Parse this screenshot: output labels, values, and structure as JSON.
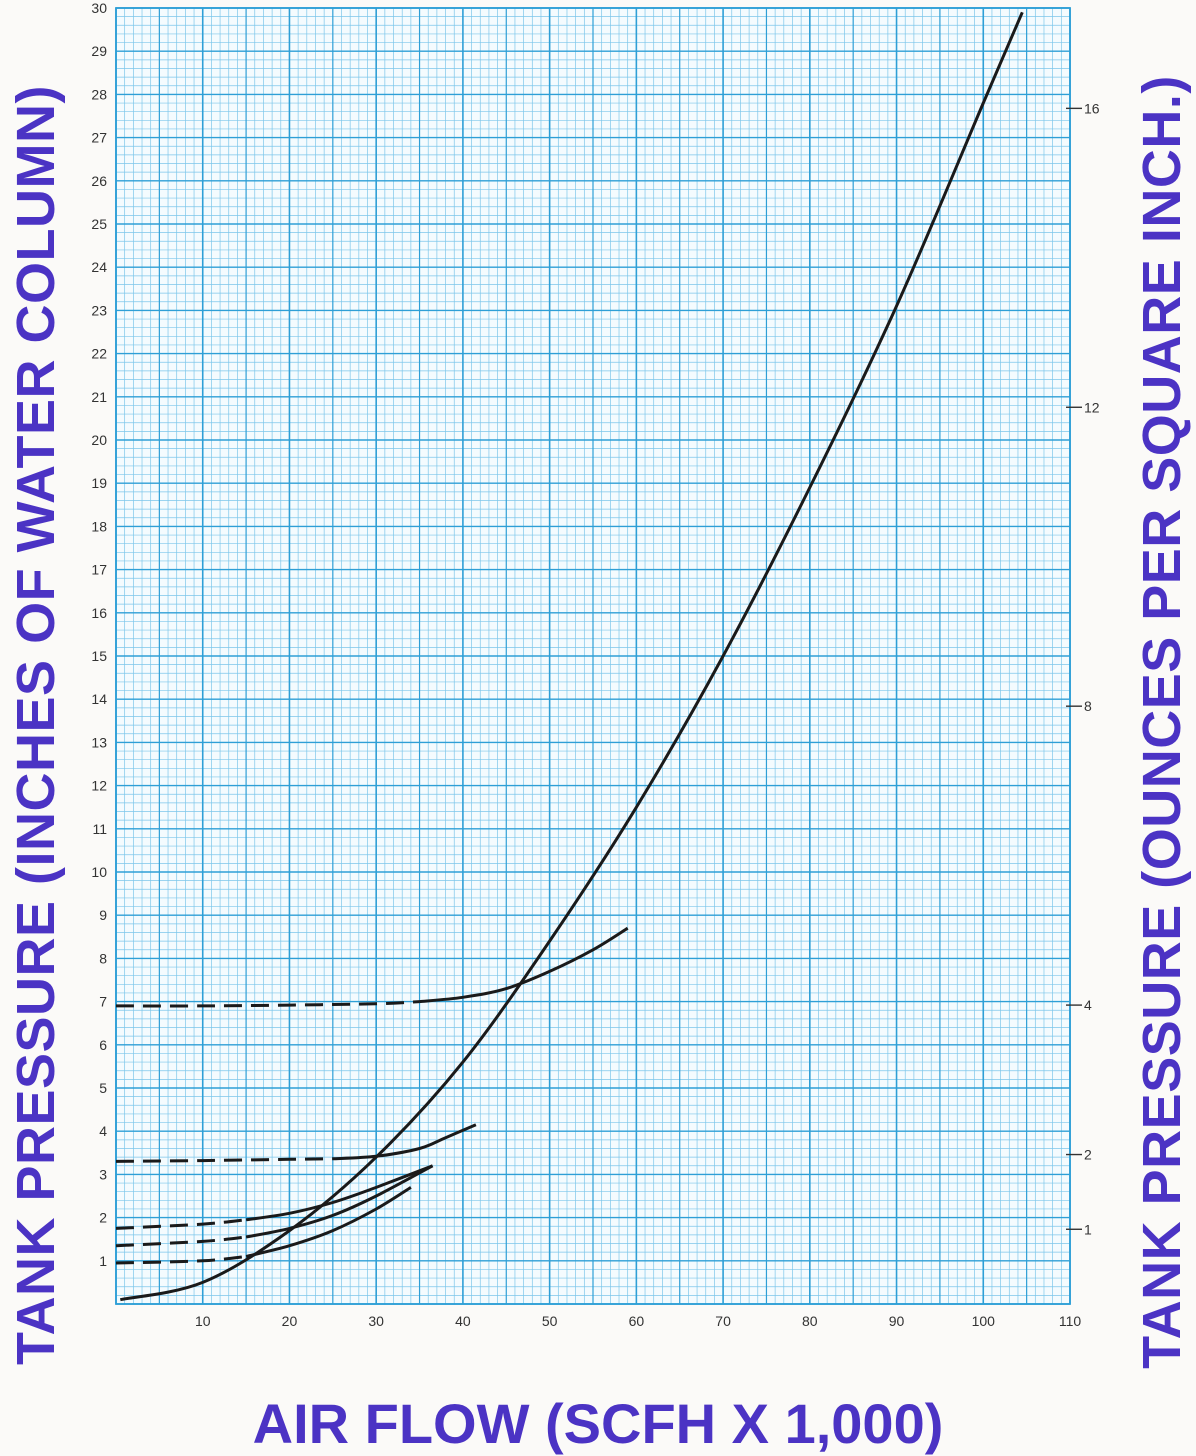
{
  "chart_data": {
    "type": "line",
    "xlabel": "AIR FLOW (SCFH X 1,000)",
    "ylabel": "TANK PRESSURE (INCHES OF WATER COLUMN)",
    "y2label": "TANK PRESSURE (OUNCES PER SQUARE INCH.)",
    "xlim": [
      0,
      110
    ],
    "ylim": [
      0,
      30
    ],
    "x_ticks": [
      10,
      20,
      30,
      40,
      50,
      60,
      70,
      80,
      90,
      100,
      110
    ],
    "y_ticks": [
      1,
      2,
      3,
      4,
      5,
      6,
      7,
      8,
      9,
      10,
      11,
      12,
      13,
      14,
      15,
      16,
      17,
      18,
      19,
      20,
      21,
      22,
      23,
      24,
      25,
      26,
      27,
      28,
      29,
      30
    ],
    "y2_ticks": [
      1,
      2,
      4,
      8,
      12,
      16
    ],
    "grid": true,
    "colors": {
      "label": "#4b33c4",
      "grid_major": "#2e9fd6",
      "grid_minor": "#7cc6ea",
      "plot_bg": "#f4fbfe",
      "curve": "#1a1a1a"
    },
    "series": [
      {
        "points": [
          [
            0.5,
            0.1
          ],
          [
            10,
            0.5
          ],
          [
            20,
            1.7
          ],
          [
            30,
            3.4
          ],
          [
            40,
            5.6
          ],
          [
            50,
            8.4
          ],
          [
            60,
            11.5
          ],
          [
            70,
            15.0
          ],
          [
            80,
            18.9
          ],
          [
            90,
            23.1
          ],
          [
            100,
            27.8
          ],
          [
            104.5,
            29.9
          ]
        ]
      },
      {
        "dashed_until": 15,
        "points": [
          [
            0,
            0.95
          ],
          [
            10,
            1.0
          ],
          [
            15,
            1.1
          ],
          [
            20,
            1.35
          ],
          [
            25,
            1.7
          ],
          [
            30,
            2.2
          ],
          [
            34,
            2.7
          ]
        ]
      },
      {
        "dashed_until": 15,
        "points": [
          [
            0,
            1.35
          ],
          [
            10,
            1.45
          ],
          [
            15,
            1.55
          ],
          [
            20,
            1.75
          ],
          [
            25,
            2.05
          ],
          [
            30,
            2.5
          ],
          [
            36.5,
            3.2
          ]
        ]
      },
      {
        "dashed_until": 15,
        "points": [
          [
            0,
            1.75
          ],
          [
            10,
            1.85
          ],
          [
            15,
            1.95
          ],
          [
            20,
            2.1
          ],
          [
            25,
            2.35
          ],
          [
            30,
            2.7
          ],
          [
            36.5,
            3.2
          ]
        ]
      },
      {
        "dashed_until": 25,
        "points": [
          [
            0,
            3.3
          ],
          [
            10,
            3.32
          ],
          [
            20,
            3.35
          ],
          [
            25,
            3.36
          ],
          [
            30,
            3.42
          ],
          [
            35,
            3.6
          ],
          [
            38,
            3.85
          ],
          [
            41.5,
            4.15
          ]
        ]
      },
      {
        "dashed_until": 35,
        "points": [
          [
            0,
            6.9
          ],
          [
            10,
            6.9
          ],
          [
            20,
            6.92
          ],
          [
            30,
            6.95
          ],
          [
            35,
            7.0
          ],
          [
            40,
            7.1
          ],
          [
            45,
            7.3
          ],
          [
            50,
            7.7
          ],
          [
            55,
            8.2
          ],
          [
            59,
            8.7
          ]
        ]
      }
    ]
  }
}
